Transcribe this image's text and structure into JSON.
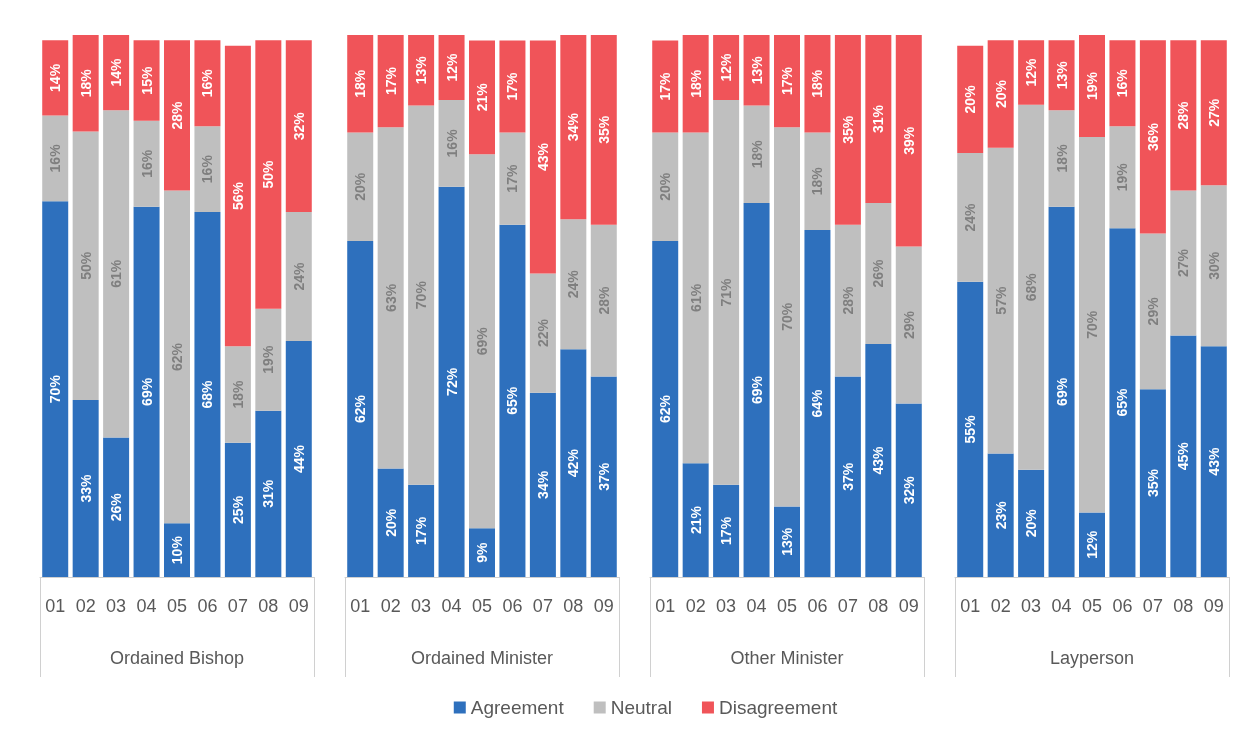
{
  "chart_data": [
    {
      "type": "bar",
      "stacked": true,
      "xlabel": "Ordained Bishop",
      "categories": [
        "01",
        "02",
        "03",
        "04",
        "05",
        "06",
        "07",
        "08",
        "09"
      ],
      "legend": "bottom",
      "series": [
        {
          "name": "Agreement",
          "color": "#2e70bd",
          "values": [
            70,
            33,
            26,
            69,
            10,
            68,
            25,
            31,
            44
          ],
          "value_labels": [
            "70%",
            "33%",
            "26%",
            "69%",
            "10%",
            "68%",
            "25%",
            "31%",
            "44%"
          ]
        },
        {
          "name": "Neutral",
          "color": "#bfbfbf",
          "values": [
            16,
            50,
            61,
            16,
            62,
            16,
            18,
            19,
            24
          ],
          "value_labels": [
            "16%",
            "50%",
            "61%",
            "16%",
            "62%",
            "16%",
            "18%",
            "19%",
            "24%"
          ]
        },
        {
          "name": "Disagreement",
          "color": "#f05459",
          "values": [
            14,
            18,
            14,
            15,
            28,
            16,
            56,
            50,
            32
          ],
          "value_labels": [
            "14%",
            "18%",
            "14%",
            "15%",
            "28%",
            "16%",
            "56%",
            "50%",
            "32%"
          ]
        }
      ]
    },
    {
      "type": "bar",
      "stacked": true,
      "xlabel": "Ordained Minister",
      "categories": [
        "01",
        "02",
        "03",
        "04",
        "05",
        "06",
        "07",
        "08",
        "09"
      ],
      "series": [
        {
          "color": "#2e70bd",
          "values": [
            62,
            20,
            17,
            72,
            9,
            65,
            34,
            42,
            37
          ],
          "value_labels": [
            "62%",
            "20%",
            "17%",
            "72%",
            "9%",
            "65%",
            "34%",
            "42%",
            "37%"
          ]
        },
        {
          "color": "#bfbfbf",
          "values": [
            20,
            63,
            70,
            16,
            69,
            17,
            22,
            24,
            28
          ],
          "value_labels": [
            "20%",
            "63%",
            "70%",
            "16%",
            "69%",
            "17%",
            "22%",
            "24%",
            "28%"
          ]
        },
        {
          "color": "#f05459",
          "values": [
            18,
            17,
            13,
            12,
            21,
            17,
            43,
            34,
            35
          ],
          "value_labels": [
            "18%",
            "17%",
            "13%",
            "12%",
            "21%",
            "17%",
            "43%",
            "34%",
            "35%"
          ]
        }
      ]
    },
    {
      "type": "bar",
      "stacked": true,
      "xlabel": "Other Minister",
      "categories": [
        "01",
        "02",
        "03",
        "04",
        "05",
        "06",
        "07",
        "08",
        "09"
      ],
      "series": [
        {
          "color": "#2e70bd",
          "values": [
            62,
            21,
            17,
            69,
            13,
            64,
            37,
            43,
            32
          ],
          "value_labels": [
            "62%",
            "21%",
            "17%",
            "69%",
            "13%",
            "64%",
            "37%",
            "43%",
            "32%"
          ]
        },
        {
          "color": "#bfbfbf",
          "values": [
            20,
            61,
            71,
            18,
            70,
            18,
            28,
            26,
            29
          ],
          "value_labels": [
            "20%",
            "61%",
            "71%",
            "18%",
            "70%",
            "18%",
            "28%",
            "26%",
            "29%"
          ]
        },
        {
          "color": "#f05459",
          "values": [
            17,
            18,
            12,
            13,
            17,
            18,
            35,
            31,
            39
          ],
          "value_labels": [
            "17%",
            "18%",
            "12%",
            "13%",
            "17%",
            "18%",
            "35%",
            "31%",
            "39%"
          ]
        }
      ]
    },
    {
      "type": "bar",
      "stacked": true,
      "xlabel": "Layperson",
      "categories": [
        "01",
        "02",
        "03",
        "04",
        "05",
        "06",
        "07",
        "08",
        "09"
      ],
      "series": [
        {
          "color": "#2e70bd",
          "values": [
            55,
            23,
            20,
            69,
            12,
            65,
            35,
            45,
            43
          ],
          "value_labels": [
            "55%",
            "23%",
            "20%",
            "69%",
            "12%",
            "65%",
            "35%",
            "45%",
            "43%"
          ]
        },
        {
          "color": "#bfbfbf",
          "values": [
            24,
            57,
            68,
            18,
            70,
            19,
            29,
            27,
            30
          ],
          "value_labels": [
            "24%",
            "57%",
            "68%",
            "18%",
            "70%",
            "19%",
            "29%",
            "27%",
            "30%"
          ]
        },
        {
          "color": "#f05459",
          "values": [
            20,
            20,
            12,
            13,
            19,
            16,
            36,
            28,
            27
          ],
          "value_labels": [
            "20%",
            "20%",
            "12%",
            "13%",
            "19%",
            "16%",
            "36%",
            "28%",
            "27%"
          ]
        }
      ]
    }
  ]
}
